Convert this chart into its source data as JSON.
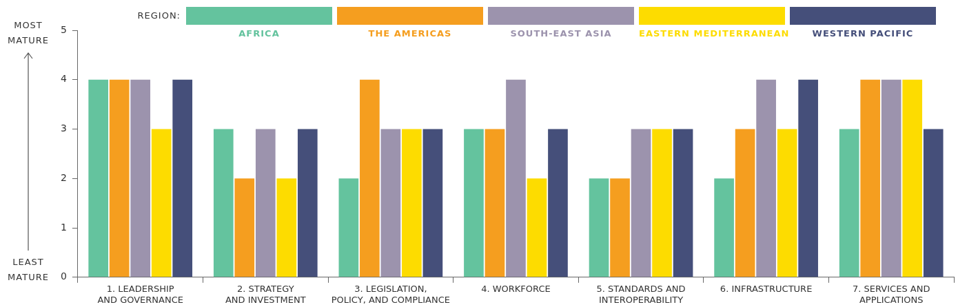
{
  "chart_data": {
    "type": "bar",
    "legend_title": "REGION:",
    "legend": "top",
    "annotations": [
      "MOST MATURE",
      "LEAST MATURE"
    ],
    "categories": [
      "1. LEADERSHIP AND GOVERNANCE",
      "2. STRATEGY AND INVESTMENT",
      "3. LEGISLATION, POLICY, AND COMPLIANCE",
      "4. WORKFORCE",
      "5. STANDARDS AND INTEROPERABILITY",
      "6. INFRASTRUCTURE",
      "7. SERVICES AND APPLICATIONS"
    ],
    "series": [
      {
        "name": "AFRICA",
        "color": "#64c39e",
        "values": [
          4,
          3,
          2,
          3,
          2,
          2,
          3
        ]
      },
      {
        "name": "THE AMERICAS",
        "color": "#f59e1f",
        "values": [
          4,
          2,
          4,
          3,
          2,
          3,
          4
        ]
      },
      {
        "name": "SOUTH-EAST ASIA",
        "color": "#9c93ad",
        "values": [
          4,
          3,
          3,
          4,
          3,
          4,
          4
        ]
      },
      {
        "name": "EASTERN MEDITERRANEAN",
        "color": "#fddc00",
        "values": [
          3,
          2,
          3,
          2,
          3,
          3,
          4
        ]
      },
      {
        "name": "WESTERN PACIFIC",
        "color": "#454f7a",
        "values": [
          4,
          3,
          3,
          3,
          3,
          4,
          3
        ]
      }
    ],
    "ylim": [
      0,
      5
    ],
    "yticks": [
      0,
      1,
      2,
      3,
      4,
      5
    ],
    "grid": false
  }
}
